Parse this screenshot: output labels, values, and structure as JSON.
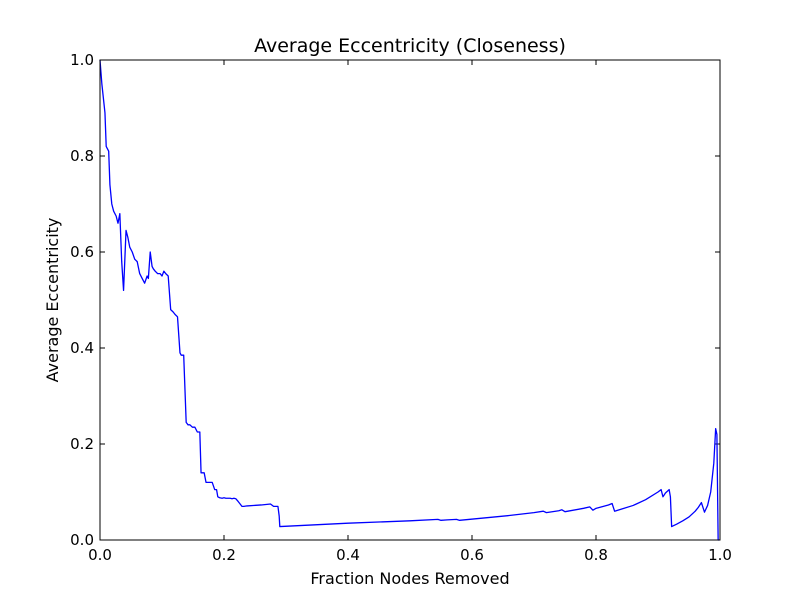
{
  "chart_data": {
    "type": "line",
    "title": "Average Eccentricity (Closeness)",
    "xlabel": "Fraction Nodes Removed",
    "ylabel": "Average Eccentricity",
    "xlim": [
      0.0,
      1.0
    ],
    "ylim": [
      0.0,
      1.0
    ],
    "x_ticks": [
      "0.0",
      "0.2",
      "0.4",
      "0.6",
      "0.8",
      "1.0"
    ],
    "y_ticks": [
      "0.0",
      "0.2",
      "0.4",
      "0.6",
      "0.8",
      "1.0"
    ],
    "grid": false,
    "legend": "none",
    "line_color": "#0000ff",
    "series": [
      {
        "x": [
          0.0,
          0.003,
          0.008,
          0.01,
          0.014,
          0.016,
          0.019,
          0.022,
          0.026,
          0.029,
          0.032,
          0.035,
          0.038,
          0.042,
          0.045,
          0.048,
          0.052,
          0.056,
          0.06,
          0.064,
          0.068,
          0.072,
          0.076,
          0.078,
          0.081,
          0.084,
          0.086,
          0.089,
          0.093,
          0.097,
          0.1,
          0.103,
          0.106,
          0.11,
          0.114,
          0.118,
          0.121,
          0.125,
          0.129,
          0.131,
          0.135,
          0.139,
          0.142,
          0.145,
          0.149,
          0.153,
          0.157,
          0.161,
          0.163,
          0.166,
          0.168,
          0.171,
          0.175,
          0.177,
          0.181,
          0.185,
          0.188,
          0.19,
          0.193,
          0.197,
          0.2,
          0.203,
          0.207,
          0.21,
          0.213,
          0.216,
          0.219,
          0.223,
          0.226,
          0.229,
          0.232,
          0.237,
          0.26,
          0.275,
          0.28,
          0.287,
          0.289,
          0.29,
          0.4,
          0.5,
          0.545,
          0.55,
          0.56,
          0.575,
          0.58,
          0.62,
          0.66,
          0.7,
          0.715,
          0.72,
          0.74,
          0.745,
          0.75,
          0.78,
          0.79,
          0.795,
          0.8,
          0.82,
          0.826,
          0.83,
          0.86,
          0.88,
          0.9,
          0.905,
          0.908,
          0.912,
          0.918,
          0.92,
          0.922,
          0.93,
          0.94,
          0.95,
          0.96,
          0.965,
          0.97,
          0.975,
          0.98,
          0.985,
          0.99,
          0.993,
          0.995,
          0.997,
          0.999
        ],
        "y": [
          1.0,
          0.95,
          0.89,
          0.82,
          0.81,
          0.74,
          0.7,
          0.685,
          0.675,
          0.66,
          0.68,
          0.58,
          0.52,
          0.645,
          0.63,
          0.61,
          0.6,
          0.585,
          0.58,
          0.555,
          0.545,
          0.535,
          0.55,
          0.545,
          0.6,
          0.57,
          0.565,
          0.56,
          0.555,
          0.555,
          0.55,
          0.56,
          0.555,
          0.55,
          0.48,
          0.475,
          0.47,
          0.465,
          0.39,
          0.385,
          0.385,
          0.245,
          0.24,
          0.24,
          0.235,
          0.235,
          0.225,
          0.225,
          0.14,
          0.14,
          0.14,
          0.12,
          0.12,
          0.12,
          0.12,
          0.105,
          0.105,
          0.09,
          0.088,
          0.087,
          0.088,
          0.087,
          0.087,
          0.087,
          0.086,
          0.087,
          0.086,
          0.08,
          0.075,
          0.07,
          0.07,
          0.071,
          0.073,
          0.075,
          0.07,
          0.07,
          0.05,
          0.028,
          0.035,
          0.04,
          0.043,
          0.041,
          0.042,
          0.043,
          0.041,
          0.046,
          0.051,
          0.057,
          0.06,
          0.057,
          0.061,
          0.063,
          0.059,
          0.066,
          0.069,
          0.062,
          0.066,
          0.073,
          0.076,
          0.06,
          0.072,
          0.084,
          0.1,
          0.105,
          0.09,
          0.098,
          0.105,
          0.09,
          0.028,
          0.033,
          0.04,
          0.048,
          0.06,
          0.068,
          0.078,
          0.058,
          0.072,
          0.1,
          0.16,
          0.232,
          0.22,
          0.0,
          0.0
        ]
      }
    ]
  }
}
